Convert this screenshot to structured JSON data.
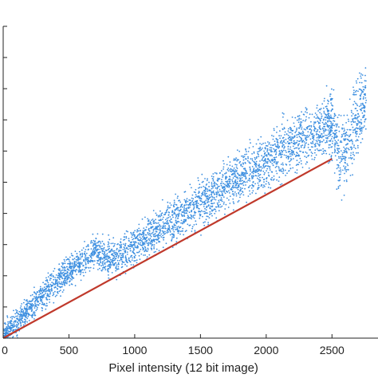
{
  "chart_data": {
    "type": "scatter",
    "title": "",
    "xlabel": "Pixel intensity (12 bit image)",
    "ylabel": "",
    "xlim": [
      0,
      2850
    ],
    "ylim": [
      0,
      1000
    ],
    "xticks": [
      0,
      500,
      1000,
      1500,
      2000,
      2500
    ],
    "xtick_labels": [
      "0",
      "500",
      "1000",
      "1500",
      "2000",
      "2500"
    ],
    "yticks": [
      0,
      100,
      200,
      300,
      400,
      500,
      600,
      700,
      800,
      900,
      1000
    ],
    "grid": false,
    "legend": "none",
    "colors": {
      "scatter": "#3d8fe0",
      "fit_line": "#c0392b",
      "axis": "#222222"
    },
    "series": [
      {
        "kind": "scatter",
        "x": [
          0,
          100,
          200,
          300,
          400,
          500,
          600,
          700,
          800,
          900,
          1000,
          1200,
          1400,
          1600,
          1800,
          2000,
          2200,
          2400,
          2500,
          2560,
          2620,
          2680,
          2750
        ],
        "y": [
          10,
          50,
          95,
          140,
          180,
          215,
          245,
          280,
          250,
          270,
          295,
          350,
          405,
          460,
          515,
          570,
          625,
          665,
          690,
          580,
          620,
          700,
          760
        ]
      },
      {
        "kind": "line",
        "x": [
          0,
          2500
        ],
        "y": [
          0,
          575
        ]
      }
    ]
  }
}
